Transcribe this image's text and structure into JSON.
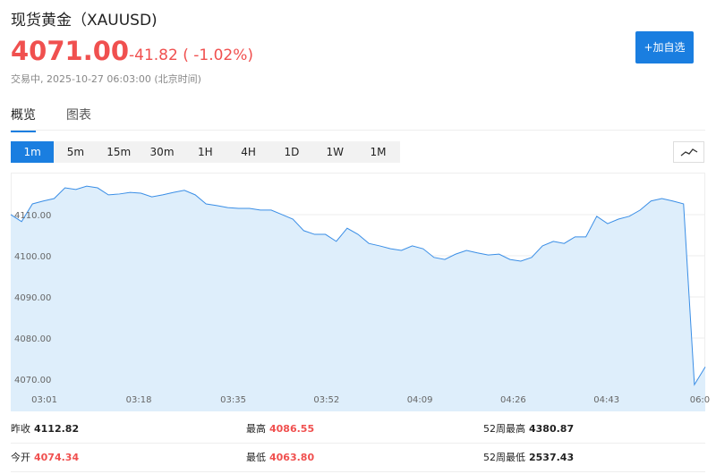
{
  "header": {
    "title": "现货黄金（XAUUSD)",
    "price": "4071.00",
    "change": "-41.82 ( -1.02%)",
    "status": "交易中, 2025-10-27 06:03:00 (北京时间)",
    "watch_button": "+加自选"
  },
  "tabs": {
    "items": [
      "概览",
      "图表"
    ],
    "active": 0
  },
  "timeframes": {
    "items": [
      "1m",
      "5m",
      "15m",
      "30m",
      "1H",
      "4H",
      "1D",
      "1W",
      "1M"
    ],
    "active": 0
  },
  "chart_data": {
    "type": "area",
    "color": "#3a8ee6",
    "fill": "#deeefb",
    "xlim": [
      0,
      64
    ],
    "xticks": [
      {
        "value": 3.1,
        "label": "03:01"
      },
      {
        "value": 11.8,
        "label": "03:18"
      },
      {
        "value": 20.5,
        "label": "03:35"
      },
      {
        "value": 29.1,
        "label": "03:52"
      },
      {
        "value": 37.7,
        "label": "04:09"
      },
      {
        "value": 46.3,
        "label": "04:26"
      },
      {
        "value": 54.9,
        "label": "04:43"
      },
      {
        "value": 63.5,
        "label": "06:0"
      }
    ],
    "ylim": [
      4062.2,
      4120.2
    ],
    "yticks": [
      {
        "value": 4070,
        "label": "4070.00"
      },
      {
        "value": 4080,
        "label": "4080.00"
      },
      {
        "value": 4090,
        "label": "4090.00"
      },
      {
        "value": 4100,
        "label": "4100.00"
      },
      {
        "value": 4110,
        "label": "4110.00"
      }
    ],
    "grid": true,
    "series": [
      {
        "values": [
          4110.0,
          4108.3,
          4112.6,
          4113.3,
          4113.9,
          4116.5,
          4116.1,
          4116.9,
          4116.5,
          4114.8,
          4115.0,
          4115.4,
          4115.2,
          4114.3,
          4114.8,
          4115.4,
          4115.9,
          4114.8,
          4112.6,
          4112.2,
          4111.7,
          4111.5,
          4111.5,
          4111.1,
          4111.1,
          4110.0,
          4108.9,
          4106.1,
          4105.2,
          4105.2,
          4103.5,
          4106.7,
          4105.2,
          4103.0,
          4102.4,
          4101.7,
          4101.3,
          4102.4,
          4101.7,
          4099.6,
          4099.1,
          4100.4,
          4101.3,
          4100.7,
          4100.2,
          4100.4,
          4099.1,
          4098.7,
          4099.6,
          4102.4,
          4103.5,
          4103.0,
          4104.6,
          4104.6,
          4109.6,
          4107.8,
          4108.9,
          4109.6,
          4111.1,
          4113.3,
          4113.9,
          4113.3,
          4112.6,
          4068.7,
          4073.0
        ]
      }
    ]
  },
  "stats": [
    {
      "label": "昨收",
      "value": "4112.82",
      "color": "#222222"
    },
    {
      "label": "最高",
      "value": "4086.55",
      "color": "#f0504f"
    },
    {
      "label": "52周最高",
      "value": "4380.87",
      "color": "#222222"
    },
    {
      "label": "今开",
      "value": "4074.34",
      "color": "#f0504f"
    },
    {
      "label": "最低",
      "value": "4063.80",
      "color": "#f0504f"
    },
    {
      "label": "52周最低",
      "value": "2537.43",
      "color": "#222222"
    }
  ]
}
